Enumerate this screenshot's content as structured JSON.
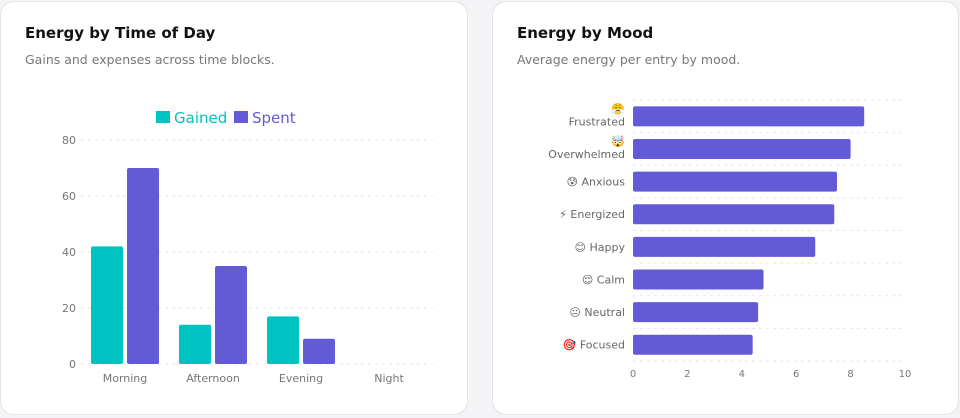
{
  "colors": {
    "gained": "#00c2c2",
    "spent": "#635bd6",
    "grid": "#e6e6ea",
    "tick": "#777"
  },
  "chart_data": [
    {
      "type": "bar",
      "title": "Energy by Time of Day",
      "subtitle": "Gains and expenses across time blocks.",
      "categories": [
        "Morning",
        "Afternoon",
        "Evening",
        "Night"
      ],
      "series": [
        {
          "name": "Gained",
          "values": [
            42,
            14,
            17,
            0
          ]
        },
        {
          "name": "Spent",
          "values": [
            70,
            35,
            9,
            0
          ]
        }
      ],
      "ylim": [
        0,
        80
      ],
      "yticks": [
        0,
        20,
        40,
        60,
        80
      ],
      "grid": true,
      "legend": "top-center"
    },
    {
      "type": "bar",
      "orientation": "horizontal",
      "title": "Energy by Mood",
      "subtitle": "Average energy per entry by mood.",
      "categories": [
        "😤 Frustrated",
        "🤯 Overwhelmed",
        "😰 Anxious",
        "⚡ Energized",
        "😊 Happy",
        "😌 Calm",
        "😐 Neutral",
        "🎯 Focused"
      ],
      "values": [
        8.5,
        8.0,
        7.5,
        7.4,
        6.7,
        4.8,
        4.6,
        4.4
      ],
      "xlim": [
        0,
        10
      ],
      "xticks": [
        0,
        2,
        4,
        6,
        8,
        10
      ],
      "grid": true
    }
  ]
}
